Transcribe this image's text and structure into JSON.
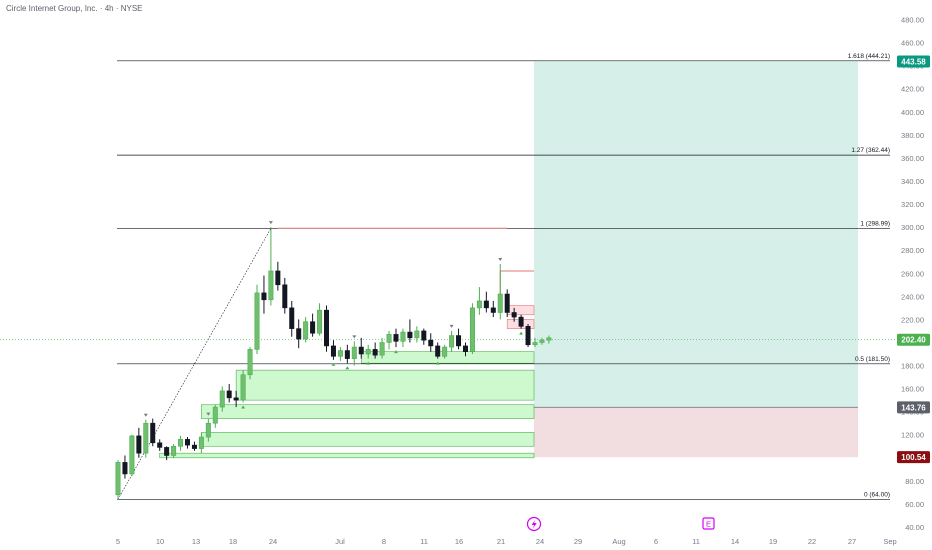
{
  "header": {
    "title": "Circle Internet Group, Inc. · 4h · NYSE"
  },
  "colors": {
    "up": "#4caf50",
    "down": "#131722",
    "zone_fill": "#b9f6b9",
    "zone_stroke": "#4caf50",
    "target": "#d7efe9",
    "stop": "#f2dde0",
    "red_line": "#e57373",
    "target_badge": "#089981",
    "current_badge": "#4caf50",
    "entry_badge": "#5d606b",
    "stop_badge": "#8b0f12"
  },
  "chart_data": {
    "type": "candlestick",
    "ylim": [
      40,
      490
    ],
    "y_ticks": [
      "480.00",
      "460.00",
      "440.00",
      "420.00",
      "400.00",
      "380.00",
      "360.00",
      "340.00",
      "320.00",
      "300.00",
      "280.00",
      "260.00",
      "240.00",
      "220.00",
      "200.00",
      "180.00",
      "160.00",
      "140.00",
      "120.00",
      "100.00",
      "80.00",
      "60.00",
      "40.00"
    ],
    "x_ticks": [
      "5",
      "10",
      "13",
      "18",
      "24",
      "Jul",
      "8",
      "11",
      "16",
      "21",
      "24",
      "29",
      "Aug",
      "6",
      "11",
      "14",
      "19",
      "22",
      "27",
      "Sep"
    ],
    "fib_levels": [
      {
        "label": "1.618 (444.21)",
        "value": 444.21
      },
      {
        "label": "1.27 (362.44)",
        "value": 362.44
      },
      {
        "label": "1 (298.99)",
        "value": 298.99
      },
      {
        "label": "0.5 (181.50)",
        "value": 181.5
      },
      {
        "label": "0 (64.00)",
        "value": 64.0
      }
    ],
    "price_badges": [
      {
        "label": "443.58",
        "value": 443.58,
        "kind": "target"
      },
      {
        "label": "202.40",
        "value": 202.4,
        "kind": "current"
      },
      {
        "label": "143.76",
        "value": 143.76,
        "kind": "entry"
      },
      {
        "label": "100.54",
        "value": 100.54,
        "kind": "stop"
      }
    ],
    "position": {
      "entry": 143.76,
      "target": 443.58,
      "stop": 100.54
    },
    "candles": [
      [
        68,
        98,
        64,
        96
      ],
      [
        96,
        102,
        82,
        86
      ],
      [
        86,
        120,
        84,
        119
      ],
      [
        119,
        126,
        100,
        104
      ],
      [
        104,
        133,
        100,
        130
      ],
      [
        130,
        134,
        110,
        113
      ],
      [
        113,
        116,
        106,
        109
      ],
      [
        109,
        110,
        98,
        102
      ],
      [
        102,
        112,
        100,
        110
      ],
      [
        110,
        119,
        106,
        116
      ],
      [
        116,
        118,
        108,
        111
      ],
      [
        111,
        114,
        106,
        108
      ],
      [
        108,
        122,
        104,
        118
      ],
      [
        118,
        134,
        114,
        130
      ],
      [
        130,
        146,
        126,
        144
      ],
      [
        144,
        162,
        140,
        158
      ],
      [
        158,
        164,
        148,
        152
      ],
      [
        152,
        158,
        144,
        150
      ],
      [
        150,
        176,
        148,
        172
      ],
      [
        172,
        196,
        168,
        194
      ],
      [
        194,
        250,
        190,
        243
      ],
      [
        243,
        258,
        225,
        237
      ],
      [
        237,
        300,
        232,
        262
      ],
      [
        262,
        270,
        245,
        250
      ],
      [
        250,
        256,
        225,
        230
      ],
      [
        230,
        236,
        205,
        212
      ],
      [
        212,
        220,
        195,
        203
      ],
      [
        203,
        222,
        200,
        218
      ],
      [
        218,
        225,
        205,
        208
      ],
      [
        208,
        234,
        206,
        228
      ],
      [
        228,
        232,
        192,
        197
      ],
      [
        197,
        202,
        185,
        188
      ],
      [
        188,
        196,
        184,
        193
      ],
      [
        193,
        198,
        182,
        186
      ],
      [
        186,
        201,
        180,
        196
      ],
      [
        196,
        204,
        186,
        190
      ],
      [
        190,
        198,
        186,
        194
      ],
      [
        194,
        200,
        186,
        189
      ],
      [
        189,
        204,
        186,
        200
      ],
      [
        200,
        210,
        194,
        207
      ],
      [
        207,
        212,
        196,
        201
      ],
      [
        201,
        212,
        196,
        209
      ],
      [
        209,
        220,
        200,
        204
      ],
      [
        204,
        214,
        200,
        210
      ],
      [
        210,
        212,
        198,
        202
      ],
      [
        202,
        208,
        192,
        197
      ],
      [
        197,
        200,
        186,
        188
      ],
      [
        188,
        198,
        186,
        196
      ],
      [
        196,
        210,
        192,
        206
      ],
      [
        206,
        212,
        194,
        197
      ],
      [
        197,
        200,
        188,
        192
      ],
      [
        192,
        234,
        190,
        230
      ],
      [
        230,
        248,
        224,
        236
      ],
      [
        236,
        244,
        226,
        230
      ],
      [
        230,
        236,
        222,
        226
      ],
      [
        226,
        268,
        220,
        242
      ],
      [
        242,
        246,
        222,
        226
      ],
      [
        226,
        230,
        218,
        222
      ],
      [
        222,
        224,
        212,
        214
      ],
      [
        214,
        216,
        196,
        198
      ],
      [
        198,
        204,
        196,
        200
      ],
      [
        200,
        204,
        198,
        202
      ],
      [
        202,
        206,
        199,
        204
      ]
    ],
    "demand_zones": [
      [
        182,
        192
      ],
      [
        150,
        176
      ],
      [
        134,
        146
      ],
      [
        110,
        122
      ],
      [
        100,
        104
      ]
    ],
    "supply_zones": [
      [
        224,
        232
      ],
      [
        212,
        220
      ]
    ],
    "resistance_lines": [
      {
        "value": 298.99,
        "from": 23,
        "to": 56
      },
      {
        "value": 262,
        "from": 55,
        "to": 63
      }
    ],
    "high_markers": [
      4,
      13,
      22,
      34,
      48,
      55
    ],
    "low_markers": [
      18,
      31,
      33,
      36,
      40,
      46,
      58
    ]
  }
}
